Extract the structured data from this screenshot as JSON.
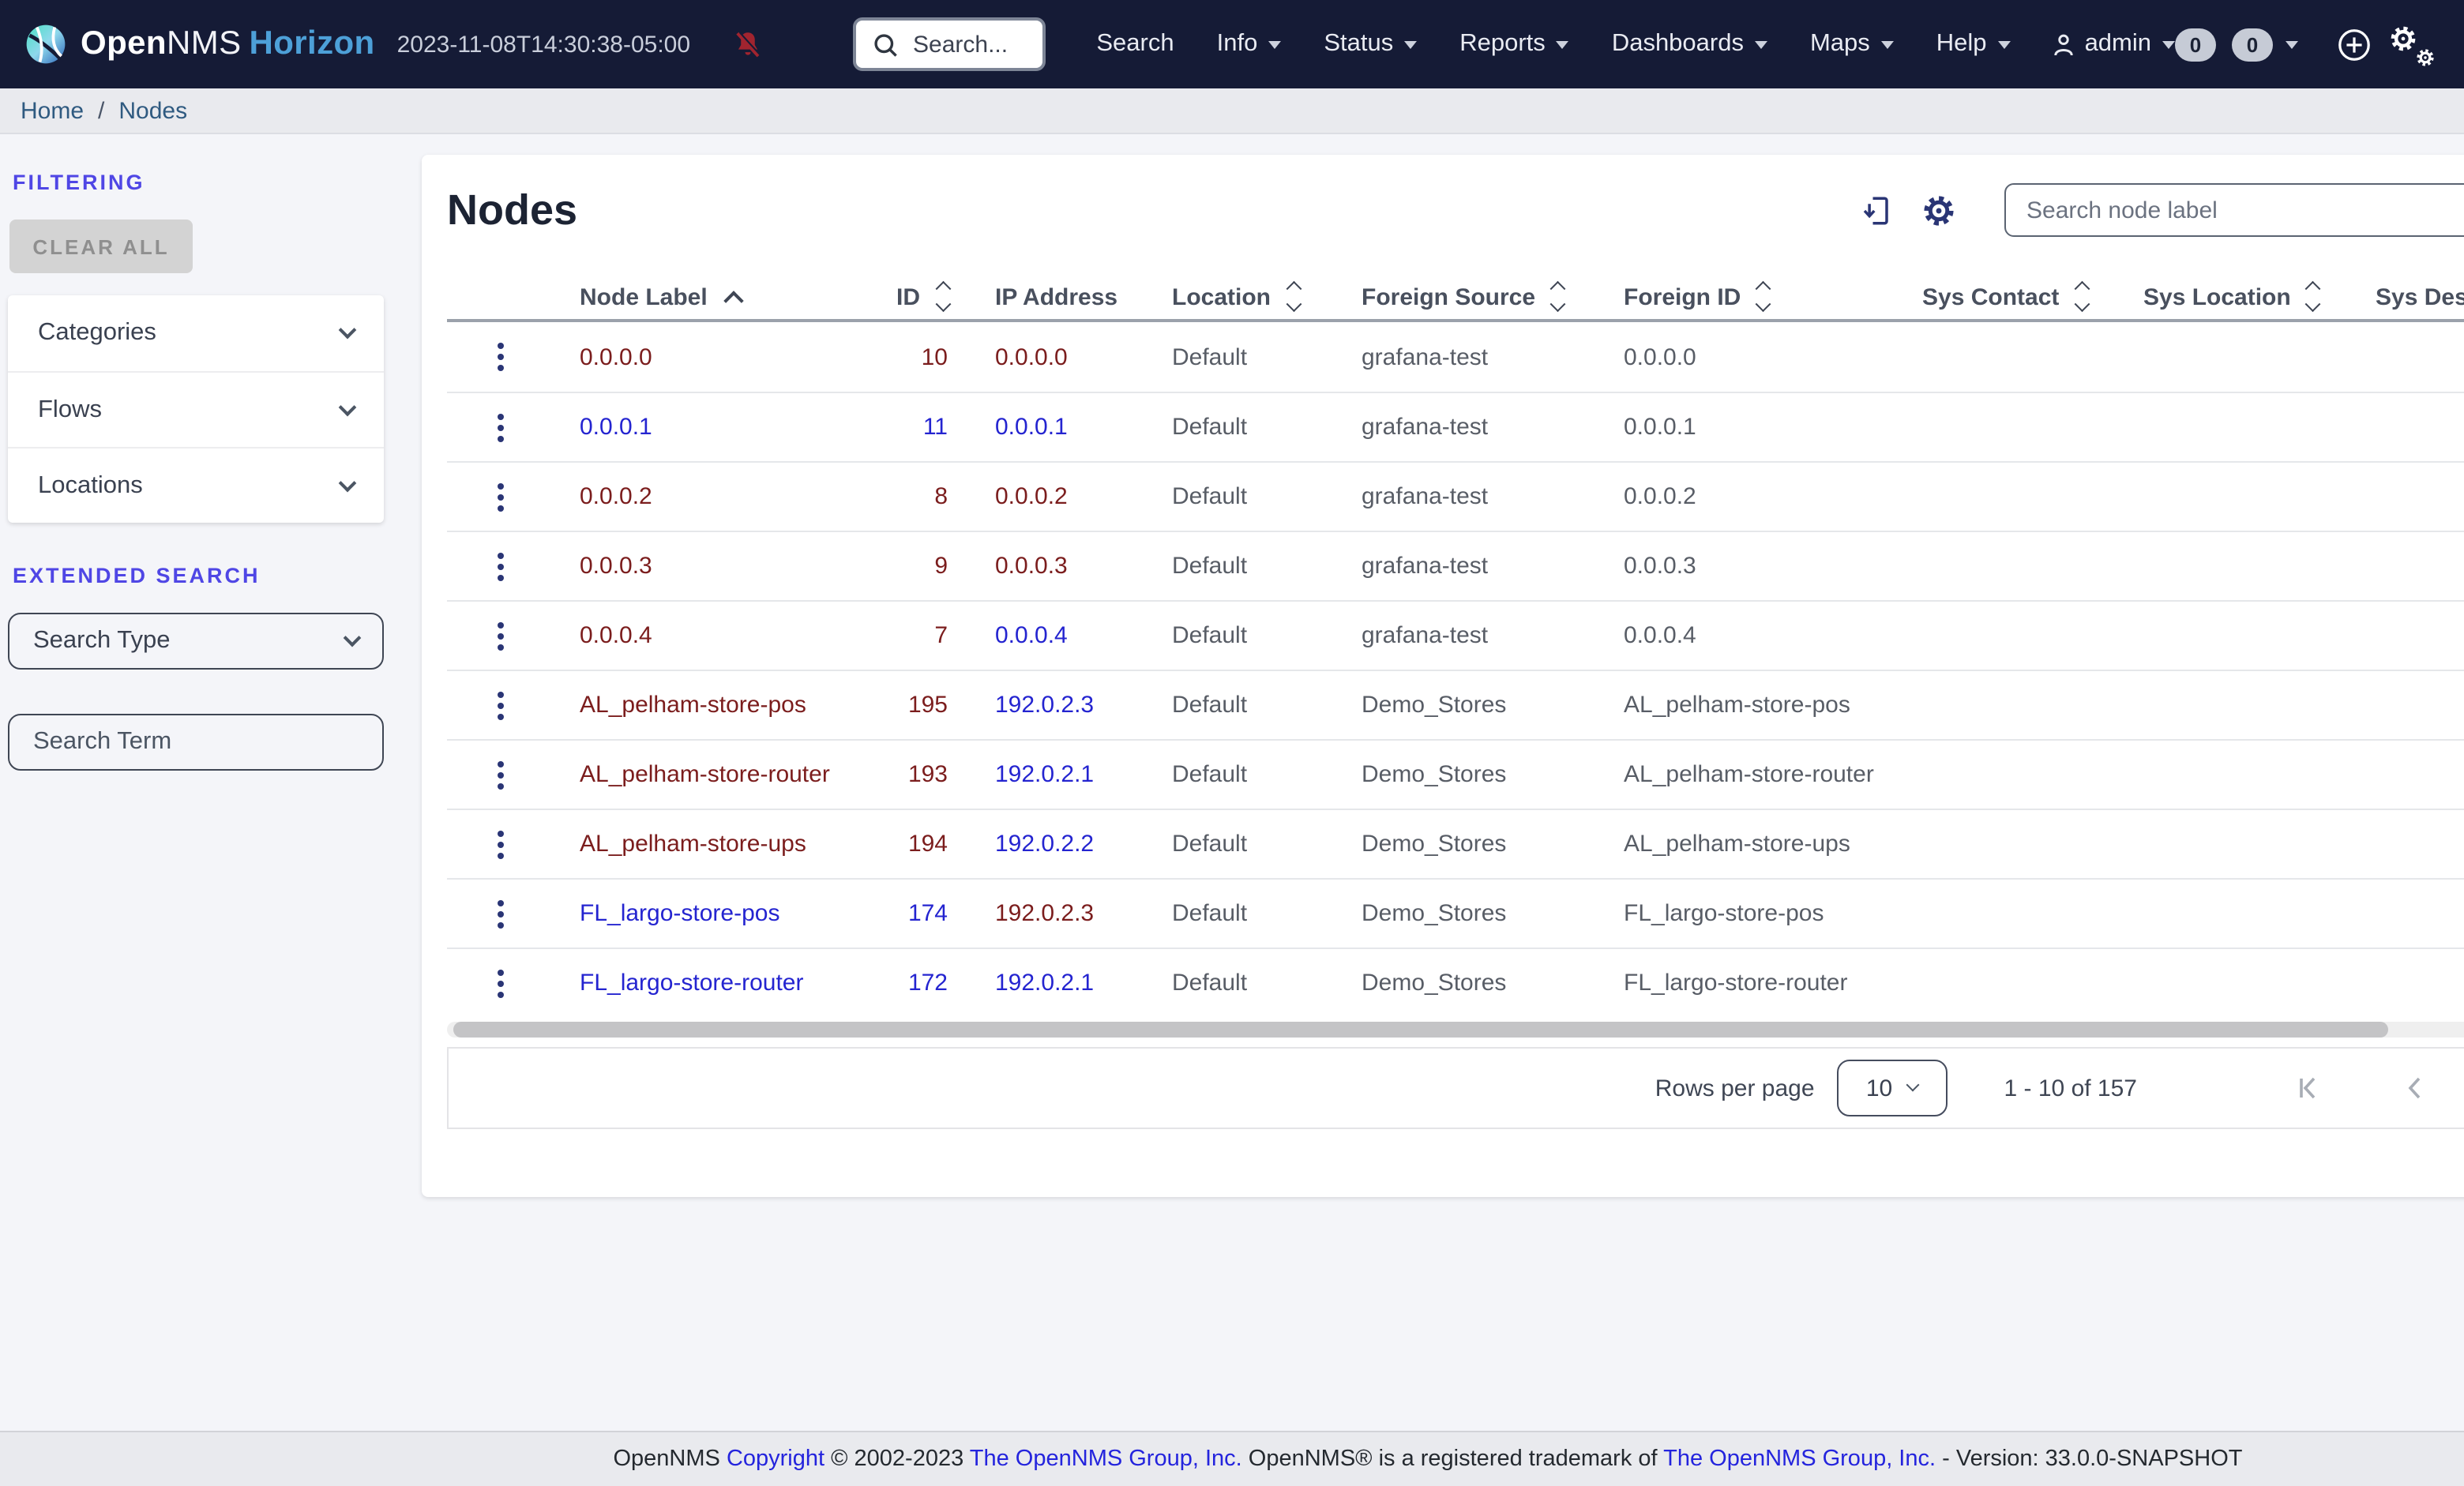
{
  "colors": {
    "navbar_bg": "#151b36",
    "accent_indigo": "#4f46e5",
    "visited_link": "#7b1d1d",
    "link": "#2424d0",
    "icon_blue": "#2a3575",
    "bell_red": "#a1242f"
  },
  "navbar": {
    "brand": {
      "open": "Open",
      "nms": "NMS",
      "product": "Horizon"
    },
    "timestamp": "2023-11-08T14:30:38-05:00",
    "search_placeholder": "Search...",
    "menu": [
      "Search",
      "Info",
      "Status",
      "Reports",
      "Dashboards",
      "Maps",
      "Help"
    ],
    "user": "admin",
    "badges": [
      "0",
      "0"
    ]
  },
  "breadcrumb": {
    "home": "Home",
    "separator": "/",
    "current": "Nodes"
  },
  "sidebar": {
    "filtering_label": "FILTERING",
    "clear_all": "CLEAR ALL",
    "accordions": [
      "Categories",
      "Flows",
      "Locations"
    ],
    "extended_search_label": "EXTENDED SEARCH",
    "search_type_placeholder": "Search Type",
    "search_term_placeholder": "Search Term"
  },
  "main": {
    "title": "Nodes",
    "search_placeholder": "Search node label",
    "table": {
      "columns": [
        {
          "label": "",
          "sort": null
        },
        {
          "label": "Node Label",
          "sort": "asc"
        },
        {
          "label": "ID",
          "sort": "both",
          "align": "right"
        },
        {
          "label": "IP Address",
          "sort": null
        },
        {
          "label": "Location",
          "sort": "both"
        },
        {
          "label": "Foreign Source",
          "sort": "both"
        },
        {
          "label": "Foreign ID",
          "sort": "both"
        },
        {
          "label": "Sys Contact",
          "sort": "both"
        },
        {
          "label": "Sys Location",
          "sort": "both"
        },
        {
          "label": "Sys Description",
          "sort": "both"
        }
      ],
      "rows": [
        {
          "label": "0.0.0.0",
          "id": "10",
          "ip": "0.0.0.0",
          "location": "Default",
          "foreign_source": "grafana-test",
          "foreign_id": "0.0.0.0",
          "label_state": "visited",
          "id_state": "visited",
          "ip_state": "visited"
        },
        {
          "label": "0.0.0.1",
          "id": "11",
          "ip": "0.0.0.1",
          "location": "Default",
          "foreign_source": "grafana-test",
          "foreign_id": "0.0.0.1",
          "label_state": "new",
          "id_state": "new",
          "ip_state": "new"
        },
        {
          "label": "0.0.0.2",
          "id": "8",
          "ip": "0.0.0.2",
          "location": "Default",
          "foreign_source": "grafana-test",
          "foreign_id": "0.0.0.2",
          "label_state": "visited",
          "id_state": "visited",
          "ip_state": "visited"
        },
        {
          "label": "0.0.0.3",
          "id": "9",
          "ip": "0.0.0.3",
          "location": "Default",
          "foreign_source": "grafana-test",
          "foreign_id": "0.0.0.3",
          "label_state": "visited",
          "id_state": "visited",
          "ip_state": "visited"
        },
        {
          "label": "0.0.0.4",
          "id": "7",
          "ip": "0.0.0.4",
          "location": "Default",
          "foreign_source": "grafana-test",
          "foreign_id": "0.0.0.4",
          "label_state": "visited",
          "id_state": "visited",
          "ip_state": "new"
        },
        {
          "label": "AL_pelham-store-pos",
          "id": "195",
          "ip": "192.0.2.3",
          "location": "Default",
          "foreign_source": "Demo_Stores",
          "foreign_id": "AL_pelham-store-pos",
          "label_state": "visited",
          "id_state": "visited",
          "ip_state": "new"
        },
        {
          "label": "AL_pelham-store-router",
          "id": "193",
          "ip": "192.0.2.1",
          "location": "Default",
          "foreign_source": "Demo_Stores",
          "foreign_id": "AL_pelham-store-router",
          "label_state": "visited",
          "id_state": "visited",
          "ip_state": "new"
        },
        {
          "label": "AL_pelham-store-ups",
          "id": "194",
          "ip": "192.0.2.2",
          "location": "Default",
          "foreign_source": "Demo_Stores",
          "foreign_id": "AL_pelham-store-ups",
          "label_state": "visited",
          "id_state": "visited",
          "ip_state": "new"
        },
        {
          "label": "FL_largo-store-pos",
          "id": "174",
          "ip": "192.0.2.3",
          "location": "Default",
          "foreign_source": "Demo_Stores",
          "foreign_id": "FL_largo-store-pos",
          "label_state": "new",
          "id_state": "new",
          "ip_state": "visited"
        },
        {
          "label": "FL_largo-store-router",
          "id": "172",
          "ip": "192.0.2.1",
          "location": "Default",
          "foreign_source": "Demo_Stores",
          "foreign_id": "FL_largo-store-router",
          "label_state": "new",
          "id_state": "new",
          "ip_state": "new"
        }
      ]
    },
    "pagination": {
      "rows_per_page_label": "Rows per page",
      "page_size": "10",
      "range_label": "1 - 10 of 157"
    }
  },
  "footer": {
    "text_1": "OpenNMS ",
    "link_1": "Copyright",
    "text_2": " © 2002-2023 ",
    "link_2": "The OpenNMS Group, Inc.",
    "text_3": " OpenNMS® is a registered trademark of ",
    "link_3": "The OpenNMS Group, Inc.",
    "text_4": " - Version: 33.0.0-SNAPSHOT"
  }
}
